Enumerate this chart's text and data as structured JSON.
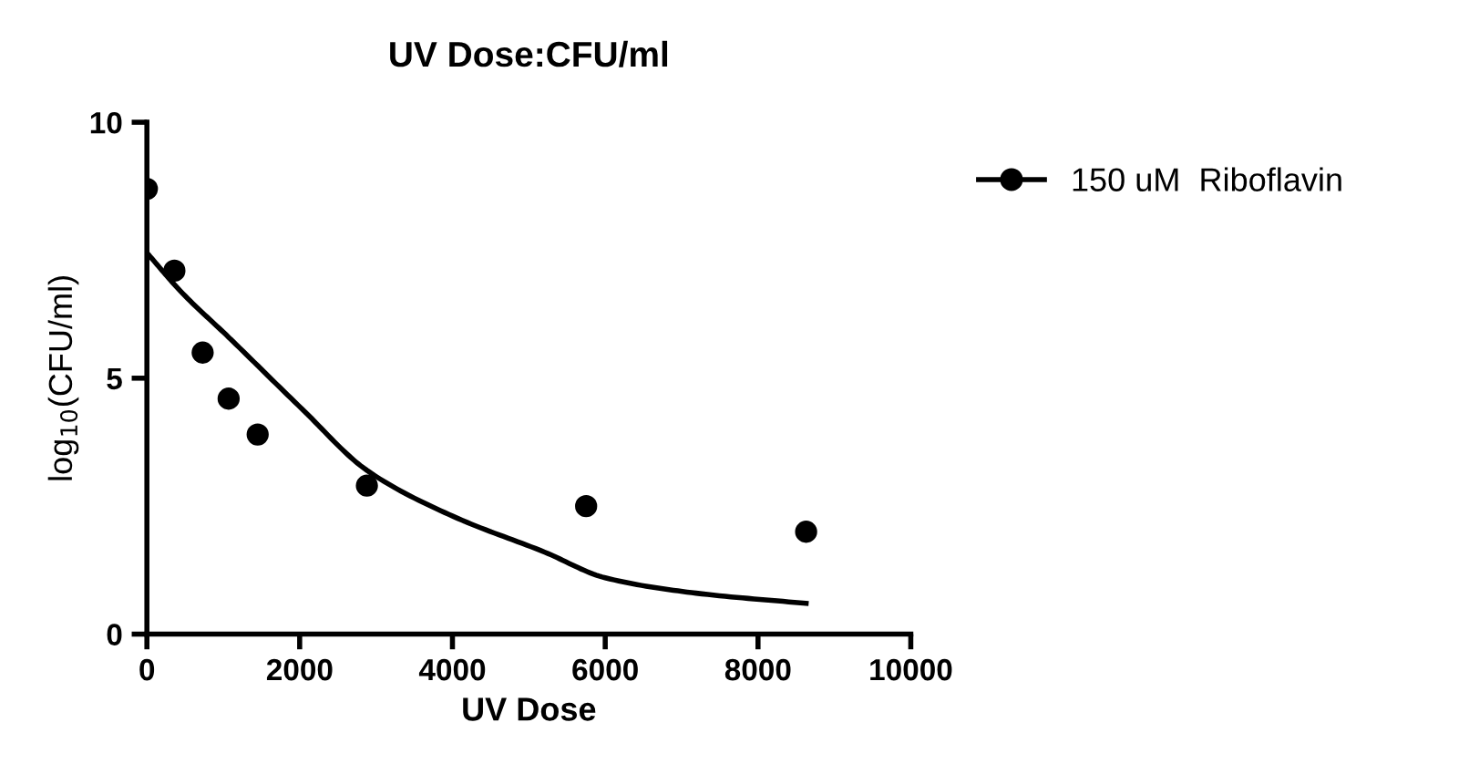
{
  "chart_data": {
    "type": "scatter",
    "title": "UV Dose:CFU/ml",
    "xlabel": "UV Dose",
    "ylabel": "log$_{10}$(CFU/ml)",
    "xlim": [
      0,
      10000
    ],
    "xticks": [
      0,
      2000,
      4000,
      6000,
      8000,
      10000
    ],
    "ylim": [
      0,
      10
    ],
    "yticks": [
      0,
      5,
      10
    ],
    "grid": false,
    "legend": "right",
    "series": [
      {
        "name": "150 uM  Riboflavin",
        "color": "#000000",
        "marker": "circle",
        "x": [
          0,
          360,
          730,
          1070,
          1450,
          2880,
          5750,
          8630
        ],
        "values": [
          8.7,
          7.1,
          5.5,
          4.6,
          3.9,
          2.9,
          2.5,
          2.0
        ]
      },
      {
        "type": "line",
        "color": "#000000",
        "line_style": "solid",
        "marker": "none",
        "x": [
          0,
          440,
          1070,
          2030,
          2880,
          4010,
          5210,
          6000,
          7190,
          8630
        ],
        "values": [
          7.45,
          6.7,
          5.8,
          4.4,
          3.2,
          2.3,
          1.6,
          1.1,
          0.8,
          0.6
        ]
      }
    ]
  }
}
